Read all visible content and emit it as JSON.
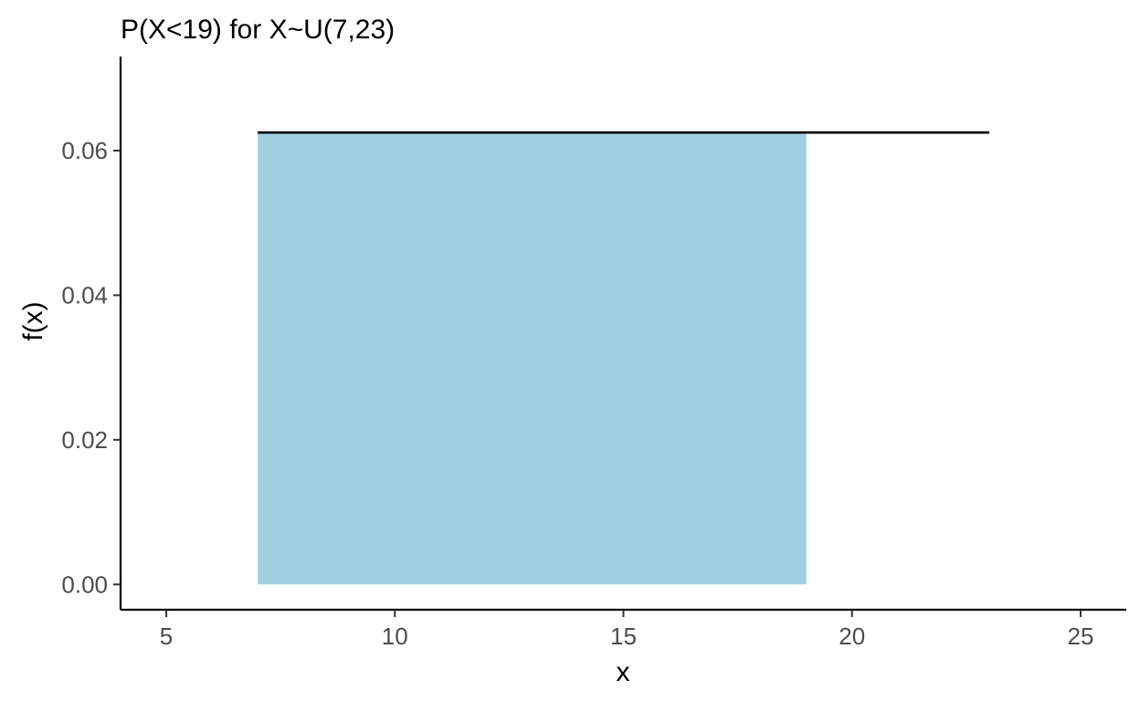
{
  "chart_data": {
    "type": "area",
    "title": "P(X<19) for X~U(7,23)",
    "xlabel": "x",
    "ylabel": "f(x)",
    "xlim": [
      4,
      26
    ],
    "ylim": [
      -0.0035,
      0.073
    ],
    "x_ticks": [
      5,
      10,
      15,
      20,
      25
    ],
    "x_tick_labels": [
      "5",
      "10",
      "15",
      "20",
      "25"
    ],
    "y_ticks": [
      0,
      0.02,
      0.04,
      0.06
    ],
    "y_tick_labels": [
      "0.00",
      "0.02",
      "0.04",
      "0.06"
    ],
    "grid": false,
    "legend": "none",
    "density_line": {
      "x": [
        7,
        23
      ],
      "y": [
        0.0625,
        0.0625
      ],
      "color": "#000000"
    },
    "shaded_region": {
      "x": [
        7,
        19
      ],
      "y": [
        0.0625,
        0.0625
      ],
      "color": "#a1cfe0"
    }
  }
}
